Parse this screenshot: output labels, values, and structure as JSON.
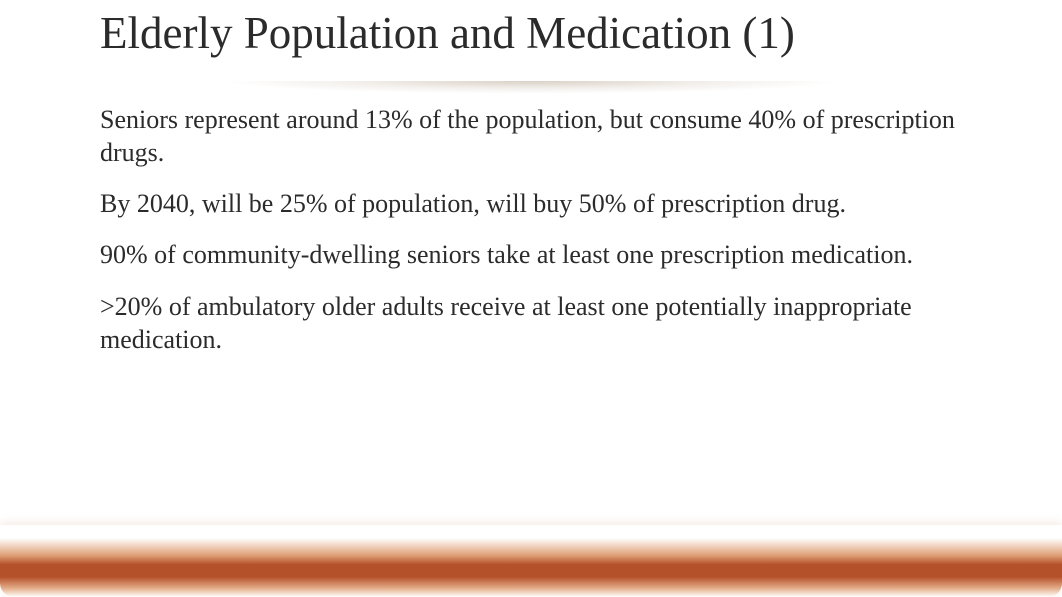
{
  "slide": {
    "title": "Elderly Population and Medication (1)",
    "title_fontsize": 45,
    "title_color": "#2b2b2b",
    "paragraphs": [
      "Seniors represent around 13% of the population, but consume 40% of prescription drugs.",
      "By 2040, will be 25% of population, will buy 50% of prescription drug.",
      "90% of community-dwelling seniors take at least one prescription medication.",
      ">20% of ambulatory older adults receive at least one potentially inappropriate medication."
    ],
    "body_fontsize": 26,
    "body_color": "#2b2b2b",
    "divider_shadow_color": "rgba(150,120,90,0.35)",
    "footer_bar": {
      "gradient_top": "#ffffff",
      "gradient_mid_light": "#d2783c",
      "gradient_core": "#b5512a",
      "gradient_bottom": "#ffffff",
      "border_radius": 14
    },
    "background_color": "#ffffff",
    "font_family": "Liberation Serif"
  }
}
